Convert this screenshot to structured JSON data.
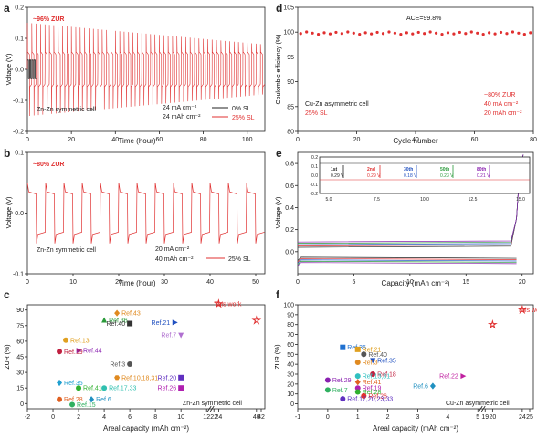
{
  "panels": {
    "a": "a",
    "b": "b",
    "c": "c",
    "d": "d",
    "e": "e",
    "f": "f"
  },
  "chart_data": [
    {
      "id": "a",
      "type": "line",
      "xlabel": "Time (hour)",
      "ylabel": "Voltage (V)",
      "xlim": [
        0,
        108
      ],
      "ylim": [
        -0.2,
        0.2
      ],
      "xticks": [
        "0",
        "20",
        "40",
        "60",
        "80",
        "100"
      ],
      "yticks": [
        "-0.2",
        "-0.1",
        "0.0",
        "0.1",
        "0.2"
      ],
      "annotations": [
        "~96% ZUR",
        "Zn-Zn symmetric cell",
        "24 mA cm⁻²",
        "24 mAh cm⁻²"
      ],
      "legend_position": "bottom-right",
      "series": [
        {
          "name": "0% SL",
          "color": "#222222",
          "cycle_hours": [
            0,
            4
          ],
          "amplitude": 0.03
        },
        {
          "name": "25% SL",
          "color": "#e03030",
          "cycle_hours": [
            0,
            108
          ],
          "amplitude": 0.08,
          "period": 2,
          "spike_start": 0.15,
          "spike_end": 0.08
        }
      ]
    },
    {
      "id": "b",
      "type": "line",
      "xlabel": "Time (hour)",
      "ylabel": "Voltage (V)",
      "xlim": [
        0,
        52
      ],
      "ylim": [
        -0.1,
        0.1
      ],
      "xticks": [
        "0",
        "10",
        "20",
        "30",
        "40",
        "50"
      ],
      "yticks": [
        "-0.1",
        "0.0",
        "0.1"
      ],
      "annotations": [
        "~80% ZUR",
        "Zn-Zn symmetric cell",
        "20 mA cm⁻²",
        "40 mAh cm⁻²"
      ],
      "legend_position": "bottom-right",
      "series": [
        {
          "name": "25% SL",
          "color": "#e03030",
          "period": 4,
          "plateau": 0.035,
          "spike": 0.05
        }
      ]
    },
    {
      "id": "c",
      "type": "scatter",
      "xlabel": "Areal capacity (mAh cm⁻²)",
      "ylabel": "ZUR (%)",
      "xticks_left": [
        "-2",
        "0",
        "2",
        "4",
        "6",
        "8",
        "10",
        "12"
      ],
      "xticks_right": [
        "22",
        "24",
        "40",
        "42"
      ],
      "yticks": [
        "0",
        "15",
        "30",
        "45",
        "60",
        "75",
        "90"
      ],
      "annotation": "Zn-Zn symmetric cell",
      "points": [
        {
          "label": "This work",
          "x": 24,
          "y": 96,
          "color": "#e03030",
          "marker": "star"
        },
        {
          "label": "",
          "x": 40,
          "y": 80,
          "color": "#e03030",
          "marker": "star"
        },
        {
          "label": "Ref.43",
          "x": 5,
          "y": 87,
          "color": "#e08a20",
          "marker": "diamond"
        },
        {
          "label": "Ref.36",
          "x": 4,
          "y": 80,
          "color": "#2a9a3a",
          "marker": "triangle"
        },
        {
          "label": "Ref.40",
          "x": 6,
          "y": 77,
          "color": "#333333",
          "marker": "square"
        },
        {
          "label": "Ref.21",
          "x": 9.5,
          "y": 78,
          "color": "#2050c0",
          "marker": "triangle-right"
        },
        {
          "label": "Ref.7",
          "x": 10,
          "y": 66,
          "color": "#b070d0",
          "marker": "triangle-down"
        },
        {
          "label": "Ref.13",
          "x": 1,
          "y": 61,
          "color": "#e0a020",
          "marker": "circle"
        },
        {
          "label": "Ref.44",
          "x": 2,
          "y": 51,
          "color": "#8a20b0",
          "marker": "triangle-right"
        },
        {
          "label": "Ref.19",
          "x": 0.5,
          "y": 50,
          "color": "#c02040",
          "marker": "circle"
        },
        {
          "label": "Ref.3",
          "x": 6,
          "y": 38,
          "color": "#555555",
          "marker": "circle"
        },
        {
          "label": "Ref.10,18,31",
          "x": 5,
          "y": 25,
          "color": "#e08a20",
          "marker": "hexagon"
        },
        {
          "label": "Ref.20",
          "x": 10,
          "y": 25,
          "color": "#6030c0",
          "marker": "square"
        },
        {
          "label": "Ref.41",
          "x": 2,
          "y": 15,
          "color": "#30b030",
          "marker": "circle"
        },
        {
          "label": "Ref.17,33",
          "x": 4,
          "y": 15,
          "color": "#30c0b0",
          "marker": "circle"
        },
        {
          "label": "Ref.26",
          "x": 10,
          "y": 15,
          "color": "#b020b0",
          "marker": "square"
        },
        {
          "label": "Ref.35",
          "x": 0.5,
          "y": 20,
          "color": "#20a0d0",
          "marker": "diamond"
        },
        {
          "label": "Ref.6",
          "x": 3,
          "y": 4,
          "color": "#2090c0",
          "marker": "diamond"
        },
        {
          "label": "Ref.28",
          "x": 0.5,
          "y": 4,
          "color": "#e06020",
          "marker": "circle"
        },
        {
          "label": "Ref.15",
          "x": 1.5,
          "y": -1,
          "color": "#30b060",
          "marker": "circle"
        }
      ]
    },
    {
      "id": "d",
      "type": "scatter",
      "xlabel": "Cycle number",
      "ylabel": "Coulombic efficiency (%)",
      "xlim": [
        0,
        80
      ],
      "ylim": [
        80,
        105
      ],
      "xticks": [
        "0",
        "20",
        "40",
        "60",
        "80"
      ],
      "yticks": [
        "80",
        "85",
        "90",
        "95",
        "100",
        "105"
      ],
      "annotations": [
        "ACE=99.8%",
        "Cu-Zn asymmetric cell",
        "25% SL",
        "~80% ZUR",
        "40 mA cm⁻²",
        "20 mAh cm⁻²"
      ],
      "series": [
        {
          "name": "",
          "color": "#e03030",
          "y_mean": 99.8
        }
      ]
    },
    {
      "id": "e",
      "type": "line",
      "xlabel": "Capacity (mAh cm⁻²)",
      "ylabel": "Voltage (V)",
      "xlim": [
        0,
        21
      ],
      "ylim": [
        -0.2,
        0.9
      ],
      "xticks": [
        "0",
        "5",
        "10",
        "15",
        "20"
      ],
      "yticks": [
        "0.0",
        "0.2",
        "0.4",
        "0.6",
        "0.8"
      ],
      "inset": {
        "xticks": [
          "5.0",
          "7.5",
          "10.0",
          "12.5",
          "15.0"
        ],
        "yticks": [
          "-0.2",
          "-0.1",
          "0.0",
          "0.1",
          "0.2"
        ],
        "labels": [
          {
            "name": "1st",
            "value": "0.29 V",
            "color": "#222222"
          },
          {
            "name": "2nd",
            "value": "0.29 V",
            "color": "#e03030"
          },
          {
            "name": "30th",
            "value": "0.18 V",
            "color": "#2050c0"
          },
          {
            "name": "50th",
            "value": "0.23 V",
            "color": "#2a9a3a"
          },
          {
            "name": "80th",
            "value": "0.21 V",
            "color": "#8a20b0"
          }
        ]
      }
    },
    {
      "id": "f",
      "type": "scatter",
      "xlabel": "Areal capacity (mAh cm⁻²)",
      "ylabel": "ZUR (%)",
      "xticks_left": [
        "-1",
        "0",
        "1",
        "2",
        "3",
        "4",
        "5"
      ],
      "xticks_right": [
        "19",
        "20",
        "24",
        "25"
      ],
      "yticks": [
        "0",
        "10",
        "20",
        "30",
        "40",
        "50",
        "60",
        "70",
        "80",
        "90",
        "100"
      ],
      "annotation": "Cu-Zn asymmetric cell",
      "points": [
        {
          "label": "This work",
          "x": 24,
          "y": 95,
          "color": "#e03030",
          "marker": "star"
        },
        {
          "label": "",
          "x": 20,
          "y": 80,
          "color": "#e03030",
          "marker": "star"
        },
        {
          "label": "Ref.36",
          "x": 0.5,
          "y": 57,
          "color": "#2070d0",
          "marker": "square"
        },
        {
          "label": "Ref.21",
          "x": 1,
          "y": 55,
          "color": "#e0a020",
          "marker": "square"
        },
        {
          "label": "Ref.40",
          "x": 1.2,
          "y": 50,
          "color": "#555555",
          "marker": "circle"
        },
        {
          "label": "Ref.35",
          "x": 1.5,
          "y": 44,
          "color": "#2050c0",
          "marker": "triangle-down"
        },
        {
          "label": "Ref.3",
          "x": 1,
          "y": 42,
          "color": "#e08a20",
          "marker": "circle"
        },
        {
          "label": "Ref.18",
          "x": 1.5,
          "y": 30,
          "color": "#c02040",
          "marker": "circle"
        },
        {
          "label": "Ref.13,31",
          "x": 1,
          "y": 28,
          "color": "#30c0c0",
          "marker": "circle"
        },
        {
          "label": "Ref.22",
          "x": 4.5,
          "y": 28,
          "color": "#c020a0",
          "marker": "triangle-right"
        },
        {
          "label": "Ref.29",
          "x": 0,
          "y": 24,
          "color": "#8a20b0",
          "marker": "circle"
        },
        {
          "label": "Ref.41",
          "x": 1,
          "y": 22,
          "color": "#e06020",
          "marker": "diamond"
        },
        {
          "label": "Ref.6",
          "x": 3.5,
          "y": 18,
          "color": "#2090c0",
          "marker": "diamond"
        },
        {
          "label": "Ref.19",
          "x": 1,
          "y": 16,
          "color": "#b020b0",
          "marker": "circle"
        },
        {
          "label": "Ref.7",
          "x": 0,
          "y": 14,
          "color": "#30b060",
          "marker": "circle"
        },
        {
          "label": "Ref.28",
          "x": 1,
          "y": 12,
          "color": "#30b030",
          "marker": "circle"
        },
        {
          "label": "Ref.26",
          "x": 1.2,
          "y": 8,
          "color": "#e03030",
          "marker": "circle"
        },
        {
          "label": "Ref.17,20,23,33",
          "x": 0.5,
          "y": 5,
          "color": "#6030c0",
          "marker": "circle"
        }
      ]
    }
  ]
}
